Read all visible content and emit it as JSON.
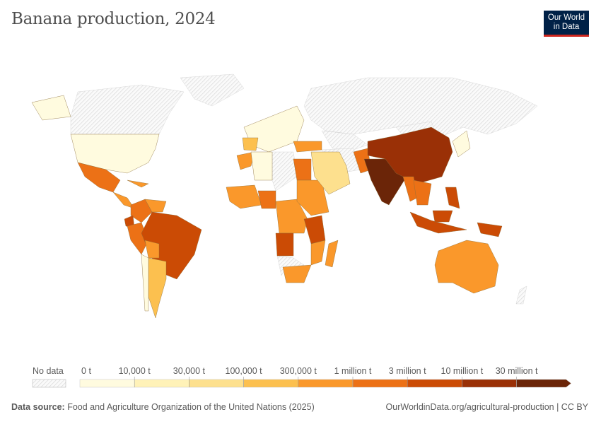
{
  "title": "Banana production, 2024",
  "logo": {
    "line1": "Our World",
    "line2": "in Data",
    "bg": "#002147",
    "accent": "#ce261e"
  },
  "legend": {
    "no_data_label": "No data",
    "tick_labels": [
      "0 t",
      "10,000 t",
      "30,000 t",
      "100,000 t",
      "300,000 t",
      "1 million t",
      "3 million t",
      "10 million t",
      "30 million t"
    ],
    "bin_colors": [
      "#fffbdf",
      "#fff2b8",
      "#fde08e",
      "#fcc04f",
      "#fa982b",
      "#ec7116",
      "#cb4b05",
      "#9a3006",
      "#6b2508"
    ]
  },
  "map_region_bins": {
    "alaska": 0,
    "usa": 0,
    "mexico": 5,
    "central_america": 4,
    "caribbean": 4,
    "colombia": 5,
    "venezuela": 4,
    "ecuador": 6,
    "peru": 5,
    "brazil": 6,
    "bolivia": 4,
    "argentina_paraguay": 3,
    "chile": 0,
    "europe": 0,
    "iberia": 3,
    "morocco": 4,
    "algeria": 0,
    "west_africa": 4,
    "nigeria": 5,
    "central_africa": 4,
    "angola": 6,
    "egypt": 5,
    "east_africa": 4,
    "tanzania": 6,
    "mozambique": 4,
    "south_africa": 4,
    "madagascar": 4,
    "arabia": 2,
    "turkey": 4,
    "pakistan": 5,
    "india": 8,
    "china": 7,
    "myanmar": 5,
    "indochina": 5,
    "philippines": 6,
    "indonesia": 6,
    "borneo": 6,
    "png": 6,
    "japan": 0,
    "australia": 4
  },
  "footer": {
    "source_label": "Data source:",
    "source_text": "Food and Agriculture Organization of the United Nations (2025)",
    "url": "OurWorldinData.org/agricultural-production | CC BY"
  }
}
